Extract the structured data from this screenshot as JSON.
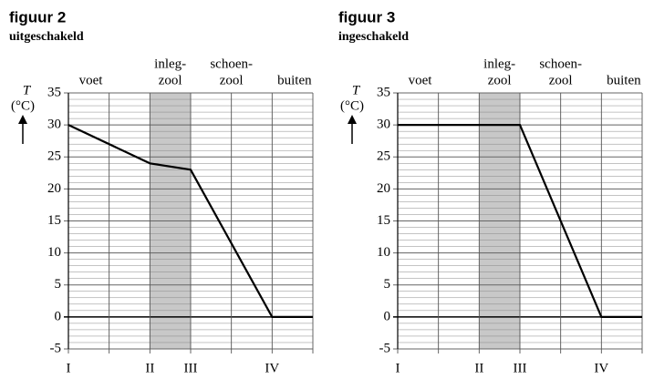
{
  "chart_data": [
    {
      "type": "line",
      "title": "figuur 2",
      "subtitle": "uitgeschakeld",
      "ylabel": "T",
      "yunit": "(°C)",
      "regions": [
        {
          "label": [
            "voet"
          ]
        },
        {
          "label": [
            "inleg-",
            "zool"
          ]
        },
        {
          "label": [
            "schoen-",
            "zool"
          ]
        },
        {
          "label": [
            "buiten"
          ]
        }
      ],
      "shaded": {
        "x": [
          2,
          3
        ],
        "color": "#c8c8c8"
      },
      "xlim": [
        0,
        6
      ],
      "xticks": [
        {
          "value": 0,
          "label": "I"
        },
        {
          "value": 2,
          "label": "II"
        },
        {
          "value": 3,
          "label": "III"
        },
        {
          "value": 5,
          "label": "IV"
        }
      ],
      "xminorticks": [
        1,
        4,
        6
      ],
      "ylim": [
        -5,
        35
      ],
      "yticks": [
        -5,
        0,
        5,
        10,
        15,
        20,
        25,
        30,
        35
      ],
      "yminorstep": 1,
      "grid": true,
      "series": [
        {
          "color": "#000000",
          "x": [
            0,
            2,
            3,
            5,
            6
          ],
          "values": [
            30,
            24,
            23,
            0,
            0
          ]
        }
      ]
    },
    {
      "type": "line",
      "title": "figuur 3",
      "subtitle": "ingeschakeld",
      "ylabel": "T",
      "yunit": "(°C)",
      "regions": [
        {
          "label": [
            "voet"
          ]
        },
        {
          "label": [
            "inleg-",
            "zool"
          ]
        },
        {
          "label": [
            "schoen-",
            "zool"
          ]
        },
        {
          "label": [
            "buiten"
          ]
        }
      ],
      "shaded": {
        "x": [
          2,
          3
        ],
        "color": "#c8c8c8"
      },
      "xlim": [
        0,
        6
      ],
      "xticks": [
        {
          "value": 0,
          "label": "I"
        },
        {
          "value": 2,
          "label": "II"
        },
        {
          "value": 3,
          "label": "III"
        },
        {
          "value": 5,
          "label": "IV"
        }
      ],
      "xminorticks": [
        1,
        4,
        6
      ],
      "ylim": [
        -5,
        35
      ],
      "yticks": [
        -5,
        0,
        5,
        10,
        15,
        20,
        25,
        30,
        35
      ],
      "yminorstep": 1,
      "grid": true,
      "series": [
        {
          "color": "#000000",
          "x": [
            0,
            3,
            5,
            6
          ],
          "values": [
            30,
            30,
            0,
            0
          ]
        }
      ]
    }
  ]
}
